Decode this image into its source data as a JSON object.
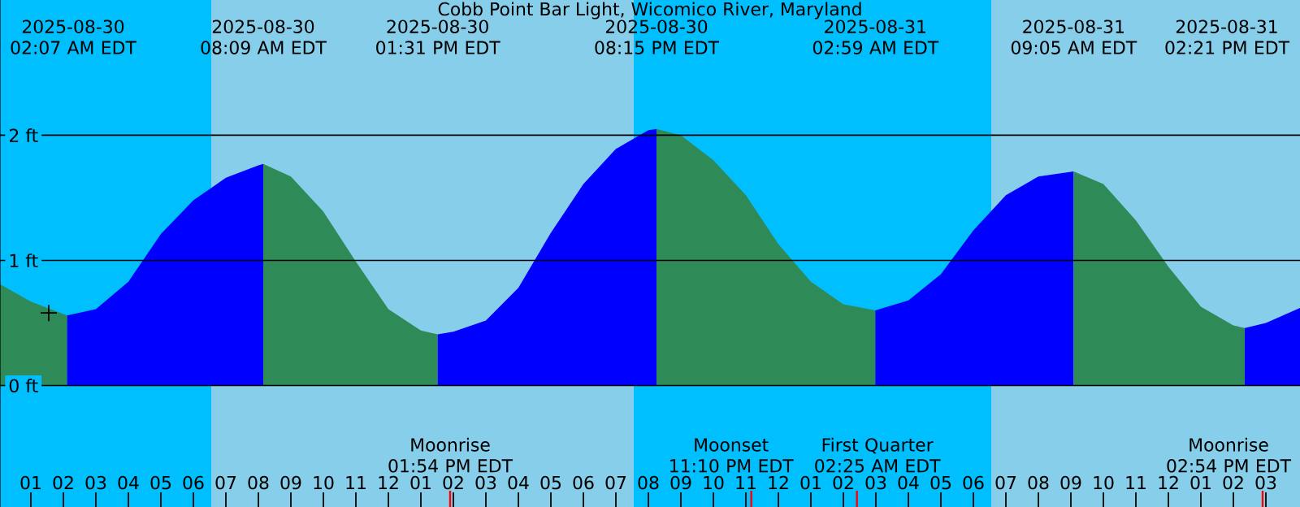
{
  "chart_data": {
    "type": "area",
    "title": "Cobb Point Bar Light, Wicomico River, Maryland",
    "series": [
      {
        "color": "#2e8b57",
        "x": [
          "2025-08-30T00:03",
          "2025-08-30T01:00",
          "2025-08-30T02:07"
        ],
        "values": [
          0.81,
          0.67,
          0.56
        ]
      },
      {
        "color": "#0000ff",
        "x": [
          "2025-08-30T02:07",
          "2025-08-30T03:00",
          "2025-08-30T04:00",
          "2025-08-30T05:00",
          "2025-08-30T06:00",
          "2025-08-30T07:00",
          "2025-08-30T08:00",
          "2025-08-30T08:09"
        ],
        "values": [
          0.56,
          0.61,
          0.83,
          1.21,
          1.48,
          1.66,
          1.76,
          1.77
        ]
      },
      {
        "color": "#2e8b57",
        "x": [
          "2025-08-30T08:09",
          "2025-08-30T09:00",
          "2025-08-30T10:00",
          "2025-08-30T11:00",
          "2025-08-30T12:00",
          "2025-08-30T13:00",
          "2025-08-30T13:31"
        ],
        "values": [
          1.77,
          1.67,
          1.39,
          0.99,
          0.61,
          0.44,
          0.41
        ]
      },
      {
        "color": "#0000ff",
        "x": [
          "2025-08-30T13:31",
          "2025-08-30T14:00",
          "2025-08-30T15:00",
          "2025-08-30T16:00",
          "2025-08-30T17:00",
          "2025-08-30T18:00",
          "2025-08-30T19:00",
          "2025-08-30T20:00",
          "2025-08-30T20:15"
        ],
        "values": [
          0.41,
          0.43,
          0.52,
          0.78,
          1.22,
          1.61,
          1.89,
          2.04,
          2.05
        ]
      },
      {
        "color": "#2e8b57",
        "x": [
          "2025-08-30T20:15",
          "2025-08-30T21:00",
          "2025-08-30T22:00",
          "2025-08-30T23:00",
          "2025-08-31T00:00",
          "2025-08-31T01:00",
          "2025-08-31T02:00",
          "2025-08-31T02:59"
        ],
        "values": [
          2.05,
          2.0,
          1.8,
          1.52,
          1.13,
          0.83,
          0.65,
          0.6
        ]
      },
      {
        "color": "#0000ff",
        "x": [
          "2025-08-31T02:59",
          "2025-08-31T04:00",
          "2025-08-31T05:00",
          "2025-08-31T06:00",
          "2025-08-31T07:00",
          "2025-08-31T08:00",
          "2025-08-31T09:05"
        ],
        "values": [
          0.6,
          0.68,
          0.89,
          1.24,
          1.52,
          1.67,
          1.71
        ]
      },
      {
        "color": "#2e8b57",
        "x": [
          "2025-08-31T09:05",
          "2025-08-31T10:00",
          "2025-08-31T11:00",
          "2025-08-31T12:00",
          "2025-08-31T13:00",
          "2025-08-31T14:00",
          "2025-08-31T14:21"
        ],
        "values": [
          1.71,
          1.61,
          1.32,
          0.95,
          0.63,
          0.48,
          0.46
        ]
      },
      {
        "color": "#0000ff",
        "x": [
          "2025-08-31T14:21",
          "2025-08-31T15:00",
          "2025-08-31T16:03"
        ],
        "values": [
          0.46,
          0.5,
          0.62
        ]
      },
      {
        "type": "scatter",
        "marker": "cross",
        "color": "#000000",
        "x": [
          "2025-08-30T01:33"
        ],
        "values": [
          0.58
        ]
      }
    ],
    "xlim": [
      "2025-08-30T00:03",
      "2025-08-31T16:03"
    ],
    "ylim": [
      -0.97,
      3.08
    ],
    "xticks": [
      {
        "value": "2025-08-30T01:00",
        "label": "01"
      },
      {
        "value": "2025-08-30T02:00",
        "label": "02"
      },
      {
        "value": "2025-08-30T03:00",
        "label": "03"
      },
      {
        "value": "2025-08-30T04:00",
        "label": "04"
      },
      {
        "value": "2025-08-30T05:00",
        "label": "05"
      },
      {
        "value": "2025-08-30T06:00",
        "label": "06"
      },
      {
        "value": "2025-08-30T07:00",
        "label": "07"
      },
      {
        "value": "2025-08-30T08:00",
        "label": "08"
      },
      {
        "value": "2025-08-30T09:00",
        "label": "09"
      },
      {
        "value": "2025-08-30T10:00",
        "label": "10"
      },
      {
        "value": "2025-08-30T11:00",
        "label": "11"
      },
      {
        "value": "2025-08-30T12:00",
        "label": "12"
      },
      {
        "value": "2025-08-30T13:00",
        "label": "01"
      },
      {
        "value": "2025-08-30T14:00",
        "label": "02"
      },
      {
        "value": "2025-08-30T15:00",
        "label": "03"
      },
      {
        "value": "2025-08-30T16:00",
        "label": "04"
      },
      {
        "value": "2025-08-30T17:00",
        "label": "05"
      },
      {
        "value": "2025-08-30T18:00",
        "label": "06"
      },
      {
        "value": "2025-08-30T19:00",
        "label": "07"
      },
      {
        "value": "2025-08-30T20:00",
        "label": "08"
      },
      {
        "value": "2025-08-30T21:00",
        "label": "09"
      },
      {
        "value": "2025-08-30T22:00",
        "label": "10"
      },
      {
        "value": "2025-08-30T23:00",
        "label": "11"
      },
      {
        "value": "2025-08-31T00:00",
        "label": "12"
      },
      {
        "value": "2025-08-31T01:00",
        "label": "01"
      },
      {
        "value": "2025-08-31T02:00",
        "label": "02"
      },
      {
        "value": "2025-08-31T03:00",
        "label": "03"
      },
      {
        "value": "2025-08-31T04:00",
        "label": "04"
      },
      {
        "value": "2025-08-31T05:00",
        "label": "05"
      },
      {
        "value": "2025-08-31T06:00",
        "label": "06"
      },
      {
        "value": "2025-08-31T07:00",
        "label": "07"
      },
      {
        "value": "2025-08-31T08:00",
        "label": "08"
      },
      {
        "value": "2025-08-31T09:00",
        "label": "09"
      },
      {
        "value": "2025-08-31T10:00",
        "label": "10"
      },
      {
        "value": "2025-08-31T11:00",
        "label": "11"
      },
      {
        "value": "2025-08-31T12:00",
        "label": "12"
      },
      {
        "value": "2025-08-31T13:00",
        "label": "01"
      },
      {
        "value": "2025-08-31T14:00",
        "label": "02"
      },
      {
        "value": "2025-08-31T15:00",
        "label": "03"
      }
    ],
    "yticks": [
      {
        "value": 0,
        "label": "0 ft"
      },
      {
        "value": 1,
        "label": "1 ft"
      },
      {
        "value": 2,
        "label": "2 ft"
      }
    ],
    "grid": "y",
    "bands": [
      {
        "axis": "x",
        "from": "2025-08-30T00:03",
        "to": "2025-08-30T06:33",
        "color": "#00bfff"
      },
      {
        "axis": "x",
        "from": "2025-08-30T06:33",
        "to": "2025-08-30T19:33",
        "color": "#87ceeb"
      },
      {
        "axis": "x",
        "from": "2025-08-30T19:33",
        "to": "2025-08-31T06:33",
        "color": "#00bfff"
      },
      {
        "axis": "x",
        "from": "2025-08-31T06:33",
        "to": "2025-08-31T16:03",
        "color": "#87ceeb"
      }
    ],
    "ref_lines": [
      {
        "axis": "x",
        "value": "2025-08-30T13:54",
        "label": "Moonrise 01:54 PM EDT",
        "color": "#ff0000"
      },
      {
        "axis": "x",
        "value": "2025-08-30T23:10",
        "label": "Moonset 11:10 PM EDT",
        "color": "#ff0000"
      },
      {
        "axis": "x",
        "value": "2025-08-31T02:25",
        "label": "First Quarter 02:25 AM EDT",
        "color": "#ff0000"
      },
      {
        "axis": "x",
        "value": "2025-08-31T14:54",
        "label": "Moonrise 02:54 PM EDT",
        "color": "#ff0000"
      }
    ],
    "annotations": [
      "2025-08-30 02:07 AM EDT",
      "2025-08-30 08:09 AM EDT",
      "2025-08-30 01:31 PM EDT",
      "2025-08-30 08:15 PM EDT",
      "2025-08-31 02:59 AM EDT",
      "2025-08-31 09:05 AM EDT",
      "2025-08-31 02:21 PM EDT"
    ]
  }
}
